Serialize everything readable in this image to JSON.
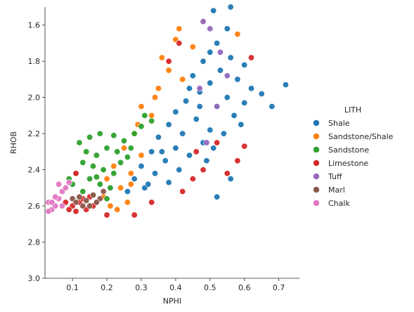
{
  "chart_data": {
    "type": "scatter",
    "xlabel": "NPHI",
    "ylabel": "RHOB",
    "xlim": [
      0.02,
      0.76
    ],
    "ylim": [
      3.0,
      1.5
    ],
    "y_inverted": true,
    "xticks": [
      0.1,
      0.2,
      0.3,
      0.4,
      0.5,
      0.6,
      0.7
    ],
    "xtick_labels": [
      "0.1",
      "0.2",
      "0.3",
      "0.4",
      "0.5",
      "0.6",
      "0.7"
    ],
    "yticks": [
      1.6,
      1.8,
      2.0,
      2.2,
      2.4,
      2.6,
      2.8,
      3.0
    ],
    "ytick_labels": [
      "1.6",
      "1.8",
      "2.0",
      "2.2",
      "2.4",
      "2.6",
      "2.8",
      "3.0"
    ],
    "grid": false,
    "legend_title": "LITH",
    "legend_position": "right",
    "series": [
      {
        "name": "Shale",
        "color": "#1f77b4",
        "points": [
          [
            0.55,
            1.62
          ],
          [
            0.52,
            1.7
          ],
          [
            0.5,
            1.75
          ],
          [
            0.56,
            1.78
          ],
          [
            0.48,
            1.8
          ],
          [
            0.6,
            1.82
          ],
          [
            0.53,
            1.85
          ],
          [
            0.45,
            1.88
          ],
          [
            0.58,
            1.9
          ],
          [
            0.5,
            1.92
          ],
          [
            0.62,
            1.95
          ],
          [
            0.47,
            1.97
          ],
          [
            0.55,
            2.0
          ],
          [
            0.43,
            2.02
          ],
          [
            0.6,
            2.03
          ],
          [
            0.52,
            2.05
          ],
          [
            0.4,
            2.08
          ],
          [
            0.57,
            2.1
          ],
          [
            0.46,
            2.12
          ],
          [
            0.38,
            2.15
          ],
          [
            0.5,
            2.18
          ],
          [
            0.42,
            2.2
          ],
          [
            0.35,
            2.22
          ],
          [
            0.48,
            2.25
          ],
          [
            0.4,
            2.28
          ],
          [
            0.33,
            2.3
          ],
          [
            0.44,
            2.32
          ],
          [
            0.37,
            2.35
          ],
          [
            0.3,
            2.38
          ],
          [
            0.41,
            2.4
          ],
          [
            0.34,
            2.42
          ],
          [
            0.28,
            2.45
          ],
          [
            0.38,
            2.47
          ],
          [
            0.31,
            2.5
          ],
          [
            0.26,
            2.52
          ],
          [
            0.65,
            1.98
          ],
          [
            0.68,
            2.05
          ],
          [
            0.72,
            1.93
          ],
          [
            0.59,
            2.15
          ],
          [
            0.54,
            2.2
          ],
          [
            0.51,
            2.28
          ],
          [
            0.49,
            2.35
          ],
          [
            0.56,
            2.45
          ],
          [
            0.52,
            2.55
          ],
          [
            0.51,
            1.52
          ],
          [
            0.56,
            1.5
          ],
          [
            0.44,
            1.95
          ],
          [
            0.47,
            2.05
          ],
          [
            0.36,
            2.3
          ],
          [
            0.32,
            2.48
          ]
        ]
      },
      {
        "name": "Sandstone/Shale",
        "color": "#ff7f0e",
        "points": [
          [
            0.4,
            1.68
          ],
          [
            0.45,
            1.72
          ],
          [
            0.38,
            1.85
          ],
          [
            0.42,
            1.9
          ],
          [
            0.35,
            1.95
          ],
          [
            0.3,
            2.05
          ],
          [
            0.33,
            2.1
          ],
          [
            0.28,
            2.2
          ],
          [
            0.25,
            2.28
          ],
          [
            0.3,
            2.32
          ],
          [
            0.22,
            2.38
          ],
          [
            0.27,
            2.42
          ],
          [
            0.2,
            2.45
          ],
          [
            0.24,
            2.5
          ],
          [
            0.19,
            2.55
          ],
          [
            0.26,
            2.58
          ],
          [
            0.21,
            2.6
          ],
          [
            0.36,
            1.78
          ],
          [
            0.41,
            1.62
          ],
          [
            0.48,
            1.58
          ],
          [
            0.58,
            1.65
          ],
          [
            0.29,
            2.15
          ],
          [
            0.34,
            2.0
          ],
          [
            0.23,
            2.62
          ],
          [
            0.27,
            2.48
          ]
        ]
      },
      {
        "name": "Sandstone",
        "color": "#2ca02c",
        "points": [
          [
            0.12,
            2.25
          ],
          [
            0.15,
            2.22
          ],
          [
            0.18,
            2.2
          ],
          [
            0.22,
            2.21
          ],
          [
            0.25,
            2.24
          ],
          [
            0.28,
            2.2
          ],
          [
            0.14,
            2.3
          ],
          [
            0.17,
            2.32
          ],
          [
            0.2,
            2.28
          ],
          [
            0.23,
            2.3
          ],
          [
            0.26,
            2.33
          ],
          [
            0.13,
            2.36
          ],
          [
            0.16,
            2.38
          ],
          [
            0.19,
            2.4
          ],
          [
            0.22,
            2.42
          ],
          [
            0.11,
            2.42
          ],
          [
            0.15,
            2.45
          ],
          [
            0.18,
            2.48
          ],
          [
            0.21,
            2.5
          ],
          [
            0.1,
            2.48
          ],
          [
            0.13,
            2.52
          ],
          [
            0.16,
            2.54
          ],
          [
            0.2,
            2.56
          ],
          [
            0.31,
            2.1
          ],
          [
            0.33,
            2.13
          ],
          [
            0.24,
            2.36
          ],
          [
            0.27,
            2.28
          ],
          [
            0.09,
            2.45
          ],
          [
            0.3,
            2.16
          ],
          [
            0.17,
            2.44
          ]
        ]
      },
      {
        "name": "Limestone",
        "color": "#d62728",
        "points": [
          [
            0.08,
            2.58
          ],
          [
            0.1,
            2.6
          ],
          [
            0.12,
            2.58
          ],
          [
            0.14,
            2.62
          ],
          [
            0.11,
            2.63
          ],
          [
            0.16,
            2.6
          ],
          [
            0.13,
            2.56
          ],
          [
            0.15,
            2.55
          ],
          [
            0.09,
            2.62
          ],
          [
            0.38,
            1.8
          ],
          [
            0.42,
            2.52
          ],
          [
            0.45,
            2.45
          ],
          [
            0.48,
            2.4
          ],
          [
            0.55,
            2.42
          ],
          [
            0.58,
            2.35
          ],
          [
            0.6,
            2.27
          ],
          [
            0.46,
            2.3
          ],
          [
            0.52,
            2.25
          ],
          [
            0.2,
            2.65
          ],
          [
            0.28,
            2.65
          ],
          [
            0.33,
            2.58
          ],
          [
            0.62,
            1.78
          ],
          [
            0.41,
            1.7
          ],
          [
            0.11,
            2.42
          ]
        ]
      },
      {
        "name": "Tuff",
        "color": "#9467bd",
        "points": [
          [
            0.5,
            1.62
          ],
          [
            0.48,
            1.58
          ],
          [
            0.53,
            1.75
          ],
          [
            0.55,
            1.88
          ],
          [
            0.47,
            1.95
          ],
          [
            0.52,
            2.05
          ],
          [
            0.49,
            2.25
          ]
        ]
      },
      {
        "name": "Marl",
        "color": "#8c564b",
        "points": [
          [
            0.1,
            2.56
          ],
          [
            0.12,
            2.55
          ],
          [
            0.14,
            2.57
          ],
          [
            0.16,
            2.54
          ],
          [
            0.18,
            2.56
          ],
          [
            0.15,
            2.6
          ],
          [
            0.13,
            2.6
          ],
          [
            0.17,
            2.58
          ],
          [
            0.19,
            2.52
          ],
          [
            0.11,
            2.58
          ]
        ]
      },
      {
        "name": "Chalk",
        "color": "#e377c2",
        "points": [
          [
            0.03,
            2.58
          ],
          [
            0.04,
            2.62
          ],
          [
            0.05,
            2.6
          ],
          [
            0.06,
            2.56
          ],
          [
            0.07,
            2.52
          ],
          [
            0.08,
            2.5
          ],
          [
            0.05,
            2.55
          ],
          [
            0.03,
            2.63
          ],
          [
            0.06,
            2.48
          ],
          [
            0.09,
            2.47
          ],
          [
            0.04,
            2.58
          ],
          [
            0.07,
            2.6
          ]
        ]
      }
    ]
  }
}
